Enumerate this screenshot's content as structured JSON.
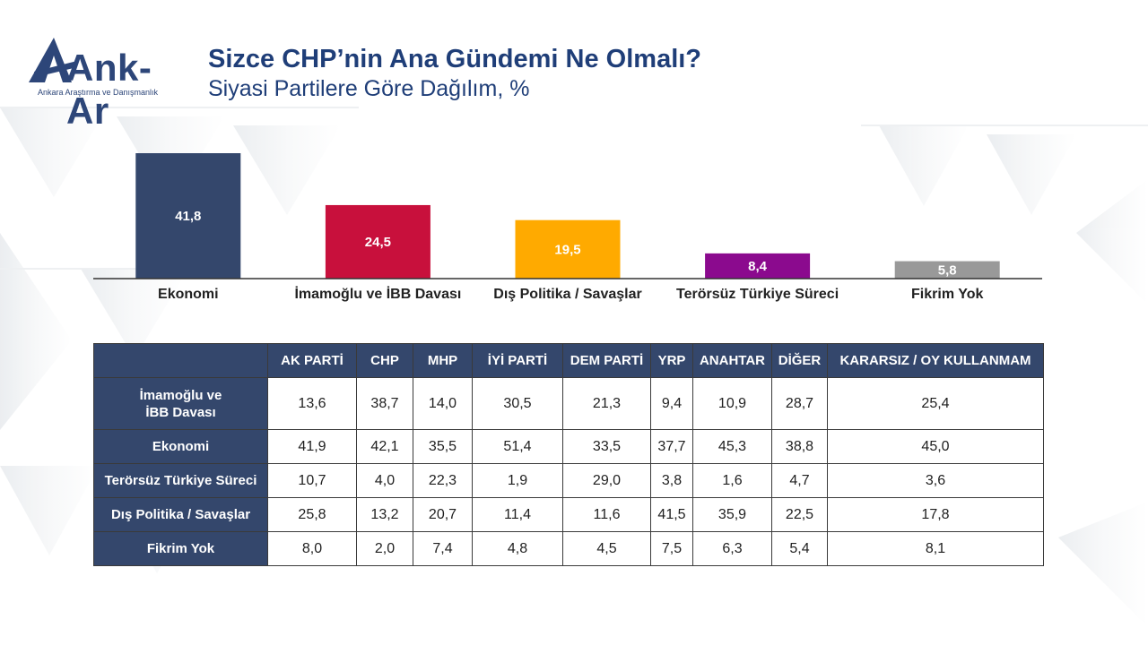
{
  "logo": {
    "name": "Ank-Ar",
    "tagline": "Ankara Araştırma ve Danışmanlık"
  },
  "header": {
    "title": "Sizce CHP’nin Ana Gündemi Ne Olmalı?",
    "subtitle": "Siyasi Partilere Göre Dağılım, %"
  },
  "chart_data": {
    "type": "bar",
    "title": "Sizce CHP’nin Ana Gündemi Ne Olmalı?",
    "subtitle": "Siyasi Partilere Göre Dağılım, %",
    "categories": [
      "Ekonomi",
      "İmamoğlu ve İBB Davası",
      "Dış Politika / Savaşlar",
      "Terörsüz Türkiye Süreci",
      "Fikrim Yok"
    ],
    "values": [
      41.8,
      24.5,
      19.5,
      8.4,
      5.8
    ],
    "value_labels": [
      "41,8",
      "24,5",
      "19,5",
      "8,4",
      "5,8"
    ],
    "colors": [
      "#34476c",
      "#c8103c",
      "#ffaa00",
      "#8b0a8e",
      "#999999"
    ],
    "ylim": [
      0,
      41.8
    ],
    "grid": false,
    "legend": "none",
    "table": {
      "columns": [
        "AK PARTİ",
        "CHP",
        "MHP",
        "İYİ PARTİ",
        "DEM PARTİ",
        "YRP",
        "ANAHTAR",
        "DİĞER",
        "KARARSIZ / OY KULLANMAM"
      ],
      "rows": [
        {
          "label": "İmamoğlu ve İBB Davası",
          "values": [
            "13,6",
            "38,7",
            "14,0",
            "30,5",
            "21,3",
            "9,4",
            "10,9",
            "28,7",
            "25,4"
          ]
        },
        {
          "label": "Ekonomi",
          "values": [
            "41,9",
            "42,1",
            "35,5",
            "51,4",
            "33,5",
            "37,7",
            "45,3",
            "38,8",
            "45,0"
          ]
        },
        {
          "label": "Terörsüz Türkiye Süreci",
          "values": [
            "10,7",
            "4,0",
            "22,3",
            "1,9",
            "29,0",
            "3,8",
            "1,6",
            "4,7",
            "3,6"
          ]
        },
        {
          "label": "Dış Politika / Savaşlar",
          "values": [
            "25,8",
            "13,2",
            "20,7",
            "11,4",
            "11,6",
            "41,5",
            "35,9",
            "22,5",
            "17,8"
          ]
        },
        {
          "label": "Fikrim Yok",
          "values": [
            "8,0",
            "2,0",
            "7,4",
            "4,8",
            "4,5",
            "7,5",
            "6,3",
            "5,4",
            "8,1"
          ]
        }
      ]
    }
  }
}
